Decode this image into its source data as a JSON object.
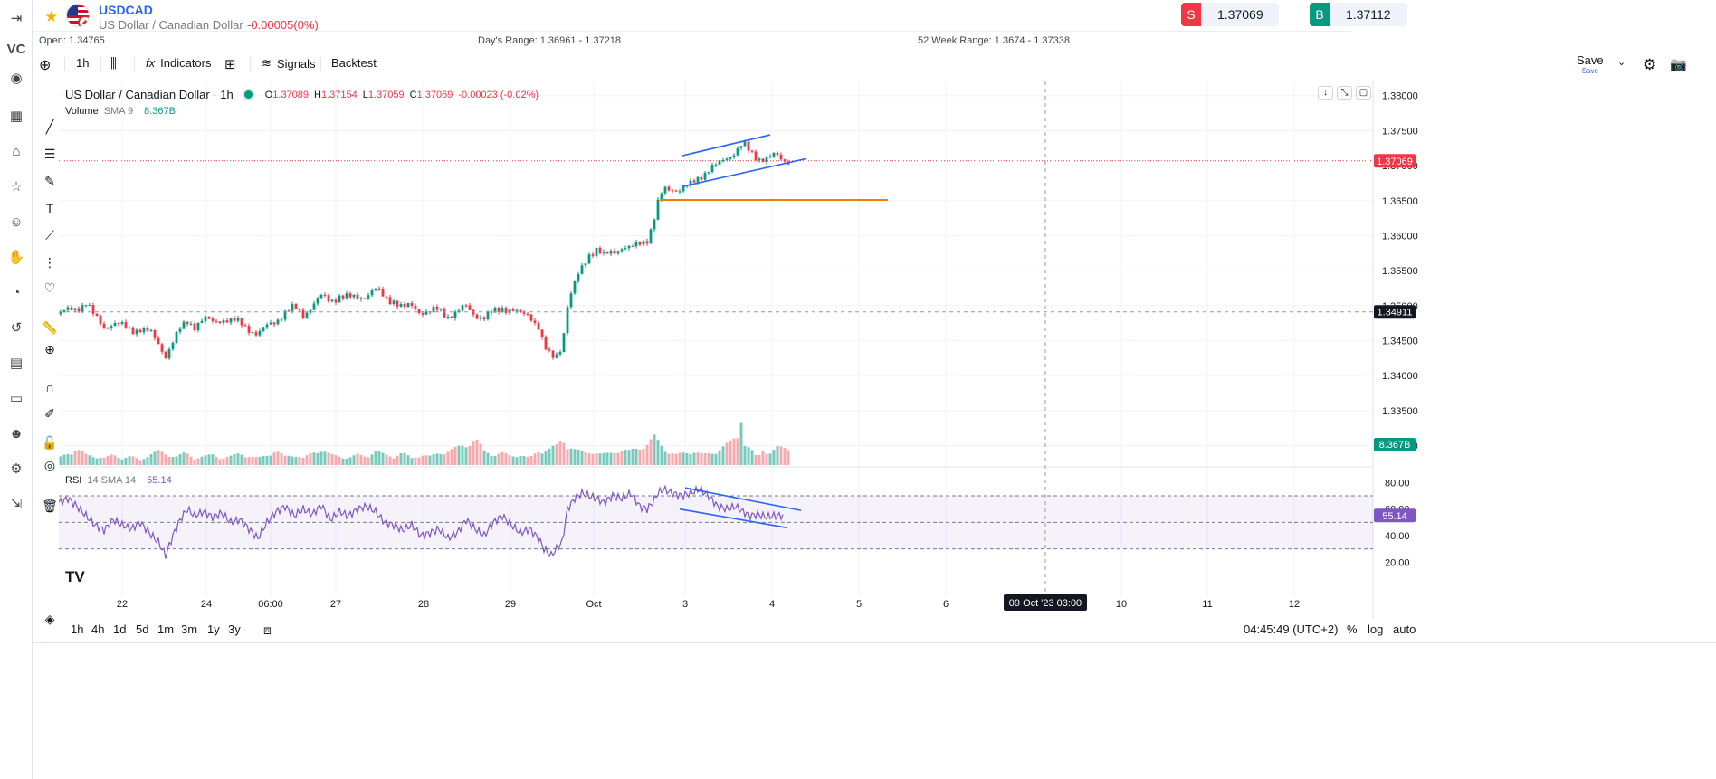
{
  "header": {
    "symbol": "USDCAD",
    "description": "US Dollar / Canadian Dollar",
    "change": "-0.00005(0%)",
    "sell": {
      "label": "S",
      "price": "1.37069"
    },
    "buy": {
      "label": "B",
      "price": "1.37112"
    }
  },
  "info": {
    "open": "Open: 1.34765",
    "day_range": "Day's Range: 1.36961 - 1.37218",
    "week52_range": "52 Week Range: 1.3674 - 1.37338"
  },
  "toolbar": {
    "interval": "1h",
    "indicators_label": "Indicators",
    "signals_label": "Signals",
    "backtest_label": "Backtest",
    "save_label": "Save",
    "save_sub": "Save"
  },
  "legend": {
    "title": "US Dollar / Canadian Dollar · 1h",
    "o_label": "O",
    "o": "1.37089",
    "h_label": "H",
    "h": "1.37154",
    "l_label": "L",
    "l": "1.37059",
    "c_label": "C",
    "c": "1.37069",
    "change": "-0.00023 (-0.02%)",
    "volume_label": "Volume",
    "volume_sma": "SMA 9",
    "volume_value": "8.367B",
    "rsi_label": "RSI",
    "rsi_params": "14 SMA 14",
    "rsi_value": "55.14"
  },
  "chart_data": {
    "type": "candlestick",
    "x_ticks": [
      "22",
      "24",
      "06:00",
      "27",
      "28",
      "29",
      "Oct",
      "3",
      "4",
      "5",
      "6",
      "10",
      "11",
      "12"
    ],
    "crosshair_label": "09 Oct '23   03:00",
    "price_ticks": [
      "1.38000",
      "1.37500",
      "1.37000",
      "1.36500",
      "1.36000",
      "1.35500",
      "1.35000",
      "1.34500",
      "1.34000",
      "1.33500",
      "1.33000"
    ],
    "price_range": [
      1.328,
      1.381
    ],
    "last_price_label": "1.37069",
    "crosshair_price_label": "1.34911",
    "volume_value_label": "8.367B",
    "rsi_ticks": [
      "80.00",
      "60.00",
      "40.00",
      "20.00"
    ],
    "rsi_range": [
      10,
      85
    ],
    "rsi_band": [
      70,
      30
    ],
    "rsi_mid": 50,
    "rsi_value_label": "55.14",
    "close_path": [
      [
        0,
        1.3488
      ],
      [
        10,
        1.3492
      ],
      [
        20,
        1.3497
      ],
      [
        30,
        1.3505
      ],
      [
        40,
        1.3482
      ],
      [
        50,
        1.347
      ],
      [
        60,
        1.3476
      ],
      [
        70,
        1.347
      ],
      [
        80,
        1.3465
      ],
      [
        90,
        1.3468
      ],
      [
        100,
        1.3462
      ],
      [
        110,
        1.3445
      ],
      [
        118,
        1.343
      ],
      [
        126,
        1.3448
      ],
      [
        134,
        1.3465
      ],
      [
        142,
        1.3478
      ],
      [
        150,
        1.3472
      ],
      [
        160,
        1.348
      ],
      [
        170,
        1.3476
      ],
      [
        180,
        1.3482
      ],
      [
        190,
        1.3478
      ],
      [
        200,
        1.3475
      ],
      [
        210,
        1.3468
      ],
      [
        220,
        1.3458
      ],
      [
        230,
        1.347
      ],
      [
        240,
        1.348
      ],
      [
        250,
        1.349
      ],
      [
        260,
        1.3496
      ],
      [
        270,
        1.3488
      ],
      [
        280,
        1.35
      ],
      [
        290,
        1.3512
      ],
      [
        300,
        1.3508
      ],
      [
        310,
        1.3514
      ],
      [
        320,
        1.351
      ],
      [
        330,
        1.3512
      ],
      [
        340,
        1.3516
      ],
      [
        350,
        1.3522
      ],
      [
        360,
        1.3512
      ],
      [
        370,
        1.3508
      ],
      [
        380,
        1.3495
      ],
      [
        390,
        1.35
      ],
      [
        400,
        1.3492
      ],
      [
        410,
        1.349
      ],
      [
        420,
        1.3494
      ],
      [
        430,
        1.3486
      ],
      [
        440,
        1.349
      ],
      [
        450,
        1.3498
      ],
      [
        460,
        1.3488
      ],
      [
        470,
        1.3482
      ],
      [
        480,
        1.349
      ],
      [
        490,
        1.3498
      ],
      [
        500,
        1.3494
      ],
      [
        510,
        1.3486
      ],
      [
        520,
        1.3488
      ],
      [
        530,
        1.347
      ],
      [
        536,
        1.344
      ],
      [
        544,
        1.3425
      ],
      [
        550,
        1.343
      ],
      [
        556,
        1.3445
      ],
      [
        562,
        1.35
      ],
      [
        570,
        1.353
      ],
      [
        578,
        1.3555
      ],
      [
        586,
        1.3575
      ],
      [
        594,
        1.358
      ],
      [
        602,
        1.357
      ],
      [
        612,
        1.3578
      ],
      [
        622,
        1.3584
      ],
      [
        632,
        1.358
      ],
      [
        642,
        1.359
      ],
      [
        650,
        1.3596
      ],
      [
        656,
        1.3615
      ],
      [
        662,
        1.3645
      ],
      [
        668,
        1.3665
      ],
      [
        678,
        1.3668
      ],
      [
        688,
        1.3666
      ],
      [
        698,
        1.3672
      ],
      [
        708,
        1.3685
      ],
      [
        718,
        1.3695
      ],
      [
        728,
        1.37
      ],
      [
        738,
        1.3712
      ],
      [
        748,
        1.3722
      ],
      [
        756,
        1.373
      ],
      [
        764,
        1.3718
      ],
      [
        772,
        1.3712
      ],
      [
        782,
        1.371
      ],
      [
        792,
        1.3714
      ],
      [
        800,
        1.3708
      ]
    ],
    "volume_path": [
      [
        0,
        0.2
      ],
      [
        10,
        0.35
      ],
      [
        20,
        0.45
      ],
      [
        30,
        0.3
      ],
      [
        40,
        0.25
      ],
      [
        50,
        0.2
      ],
      [
        60,
        0.3
      ],
      [
        70,
        0.2
      ],
      [
        80,
        0.25
      ],
      [
        90,
        0.15
      ],
      [
        100,
        0.3
      ],
      [
        110,
        0.4
      ],
      [
        120,
        0.3
      ],
      [
        130,
        0.25
      ],
      [
        140,
        0.35
      ],
      [
        150,
        0.2
      ],
      [
        160,
        0.25
      ],
      [
        170,
        0.3
      ],
      [
        180,
        0.2
      ],
      [
        190,
        0.25
      ],
      [
        200,
        0.35
      ],
      [
        210,
        0.25
      ],
      [
        220,
        0.2
      ],
      [
        230,
        0.3
      ],
      [
        240,
        0.4
      ],
      [
        250,
        0.25
      ],
      [
        260,
        0.3
      ],
      [
        270,
        0.2
      ],
      [
        280,
        0.35
      ],
      [
        290,
        0.45
      ],
      [
        300,
        0.3
      ],
      [
        310,
        0.25
      ],
      [
        320,
        0.2
      ],
      [
        330,
        0.3
      ],
      [
        340,
        0.25
      ],
      [
        350,
        0.4
      ],
      [
        360,
        0.3
      ],
      [
        370,
        0.25
      ],
      [
        380,
        0.35
      ],
      [
        390,
        0.2
      ],
      [
        400,
        0.3
      ],
      [
        410,
        0.25
      ],
      [
        420,
        0.35
      ],
      [
        430,
        0.4
      ],
      [
        440,
        0.5
      ],
      [
        450,
        0.6
      ],
      [
        460,
        0.75
      ],
      [
        465,
        0.6
      ],
      [
        470,
        0.4
      ],
      [
        480,
        0.3
      ],
      [
        490,
        0.35
      ],
      [
        500,
        0.25
      ],
      [
        510,
        0.3
      ],
      [
        520,
        0.2
      ],
      [
        530,
        0.4
      ],
      [
        540,
        0.45
      ],
      [
        550,
        0.55
      ],
      [
        556,
        0.75
      ],
      [
        562,
        0.6
      ],
      [
        570,
        0.45
      ],
      [
        580,
        0.35
      ],
      [
        590,
        0.4
      ],
      [
        600,
        0.3
      ],
      [
        610,
        0.35
      ],
      [
        620,
        0.45
      ],
      [
        630,
        0.4
      ],
      [
        640,
        0.5
      ],
      [
        650,
        0.6
      ],
      [
        658,
        0.8
      ],
      [
        665,
        0.6
      ],
      [
        672,
        0.4
      ],
      [
        682,
        0.3
      ],
      [
        692,
        0.35
      ],
      [
        702,
        0.4
      ],
      [
        712,
        0.3
      ],
      [
        722,
        0.35
      ],
      [
        732,
        0.5
      ],
      [
        742,
        0.65
      ],
      [
        750,
        0.85
      ],
      [
        754,
        1.6
      ],
      [
        758,
        0.6
      ],
      [
        766,
        0.4
      ],
      [
        772,
        0.2
      ],
      [
        778,
        0.45
      ],
      [
        786,
        0.35
      ],
      [
        794,
        0.5
      ]
    ],
    "rsi_path": [
      [
        0,
        65
      ],
      [
        10,
        68
      ],
      [
        20,
        62
      ],
      [
        30,
        55
      ],
      [
        40,
        48
      ],
      [
        50,
        44
      ],
      [
        60,
        52
      ],
      [
        70,
        48
      ],
      [
        80,
        45
      ],
      [
        90,
        50
      ],
      [
        100,
        42
      ],
      [
        110,
        35
      ],
      [
        118,
        25
      ],
      [
        126,
        40
      ],
      [
        134,
        52
      ],
      [
        142,
        60
      ],
      [
        150,
        55
      ],
      [
        160,
        58
      ],
      [
        170,
        54
      ],
      [
        180,
        57
      ],
      [
        190,
        50
      ],
      [
        200,
        52
      ],
      [
        210,
        45
      ],
      [
        220,
        38
      ],
      [
        230,
        50
      ],
      [
        240,
        58
      ],
      [
        250,
        62
      ],
      [
        260,
        55
      ],
      [
        270,
        60
      ],
      [
        280,
        56
      ],
      [
        290,
        63
      ],
      [
        300,
        52
      ],
      [
        310,
        58
      ],
      [
        320,
        55
      ],
      [
        330,
        60
      ],
      [
        340,
        62
      ],
      [
        350,
        58
      ],
      [
        360,
        50
      ],
      [
        370,
        48
      ],
      [
        380,
        44
      ],
      [
        390,
        48
      ],
      [
        400,
        40
      ],
      [
        410,
        42
      ],
      [
        420,
        45
      ],
      [
        430,
        38
      ],
      [
        440,
        42
      ],
      [
        450,
        52
      ],
      [
        460,
        45
      ],
      [
        470,
        40
      ],
      [
        480,
        50
      ],
      [
        490,
        55
      ],
      [
        500,
        48
      ],
      [
        510,
        42
      ],
      [
        520,
        45
      ],
      [
        530,
        38
      ],
      [
        536,
        30
      ],
      [
        544,
        25
      ],
      [
        550,
        30
      ],
      [
        556,
        35
      ],
      [
        562,
        60
      ],
      [
        570,
        68
      ],
      [
        578,
        72
      ],
      [
        586,
        70
      ],
      [
        594,
        68
      ],
      [
        602,
        65
      ],
      [
        612,
        70
      ],
      [
        622,
        68
      ],
      [
        632,
        72
      ],
      [
        642,
        62
      ],
      [
        650,
        60
      ],
      [
        656,
        65
      ],
      [
        662,
        72
      ],
      [
        668,
        75
      ],
      [
        678,
        72
      ],
      [
        688,
        70
      ],
      [
        698,
        72
      ],
      [
        708,
        75
      ],
      [
        718,
        70
      ],
      [
        728,
        62
      ],
      [
        738,
        60
      ],
      [
        748,
        62
      ],
      [
        756,
        58
      ],
      [
        764,
        55
      ],
      [
        772,
        56
      ],
      [
        782,
        54
      ],
      [
        790,
        55
      ]
    ],
    "horizontal_level": 1.3651,
    "channel_upper": [
      [
        688,
        1.3714
      ],
      [
        786,
        1.3744
      ]
    ],
    "channel_lower": [
      [
        688,
        1.367
      ],
      [
        826,
        1.371
      ]
    ],
    "rsi_line_upper": [
      [
        692,
        76
      ],
      [
        820,
        59
      ]
    ],
    "rsi_line_lower": [
      [
        686,
        60
      ],
      [
        804,
        46
      ]
    ]
  },
  "bottom": {
    "timeframes": [
      "1h",
      "4h",
      "1d",
      "5d",
      "1m",
      "3m",
      "1y",
      "3y"
    ],
    "clock": "04:45:49 (UTC+2)",
    "pct": "%",
    "log": "log",
    "auto": "auto"
  }
}
